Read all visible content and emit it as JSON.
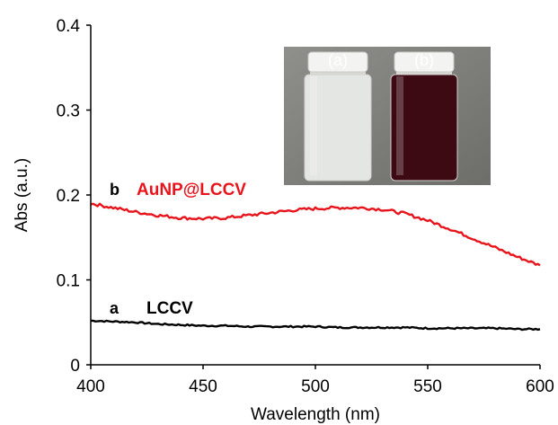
{
  "chart_data": {
    "type": "line",
    "title": "",
    "xlabel": "Wavelength (nm)",
    "ylabel": "Abs (a.u.)",
    "xlim": [
      400,
      600
    ],
    "ylim": [
      0,
      0.4
    ],
    "x_ticks": [
      "400",
      "450",
      "500",
      "550",
      "600"
    ],
    "y_ticks": [
      "0",
      "0.1",
      "0.2",
      "0.3",
      "0.4"
    ],
    "grid": false,
    "colors": {
      "a": "#000000",
      "b": "#e8141b"
    },
    "series": [
      {
        "letter": "a",
        "name": "LCCV",
        "x": [
          400,
          410,
          420,
          430,
          440,
          450,
          460,
          470,
          480,
          490,
          500,
          510,
          520,
          530,
          540,
          550,
          560,
          570,
          580,
          590,
          600
        ],
        "values": [
          0.052,
          0.051,
          0.05,
          0.048,
          0.047,
          0.046,
          0.046,
          0.045,
          0.045,
          0.045,
          0.045,
          0.044,
          0.044,
          0.044,
          0.044,
          0.043,
          0.043,
          0.043,
          0.043,
          0.042,
          0.042
        ]
      },
      {
        "letter": "b",
        "name": "AuNP@LCCV",
        "x": [
          400,
          410,
          420,
          430,
          440,
          450,
          460,
          470,
          480,
          490,
          500,
          510,
          520,
          530,
          540,
          550,
          560,
          570,
          580,
          590,
          600
        ],
        "values": [
          0.19,
          0.185,
          0.18,
          0.176,
          0.173,
          0.172,
          0.173,
          0.176,
          0.179,
          0.182,
          0.184,
          0.185,
          0.185,
          0.183,
          0.178,
          0.17,
          0.16,
          0.149,
          0.138,
          0.127,
          0.117
        ]
      }
    ],
    "inset": {
      "labels": [
        "(a)",
        "(b)"
      ],
      "vial_colors": [
        "#e4e6e3",
        "#3d0a13"
      ]
    }
  }
}
